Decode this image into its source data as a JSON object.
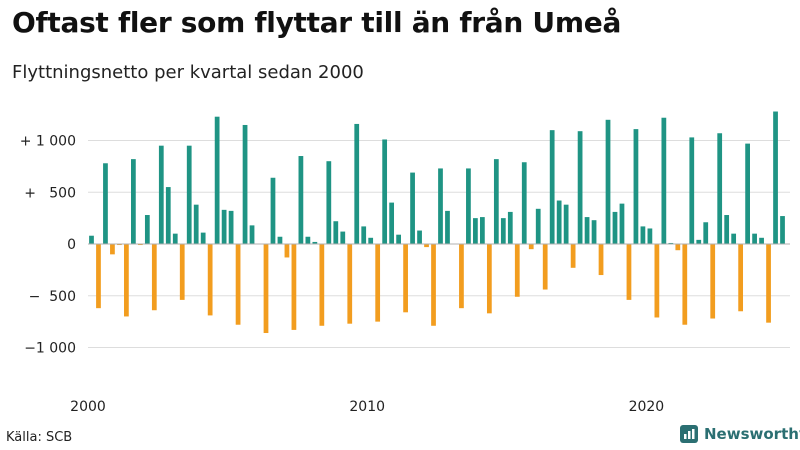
{
  "title": "Oftast fler som flyttar till än från Umeå",
  "subtitle": "Flyttningsnetto per kvartal sedan 2000",
  "source": "Källa: SCB",
  "brand": {
    "name": "Newsworthy",
    "logo_icon": "bar-chart-logo-icon"
  },
  "colors": {
    "positive": "#1f9484",
    "negative": "#f29d1f",
    "grid": "#dddddd",
    "zero": "#b0b0b0"
  },
  "chart_data": {
    "type": "bar",
    "title": "Oftast fler som flyttar till än från Umeå",
    "subtitle": "Flyttningsnetto per kvartal sedan 2000",
    "xlabel": "",
    "ylabel": "",
    "x_start": "2000 Q1",
    "x_ticks": [
      "2000",
      "2010",
      "2020"
    ],
    "ylim": [
      -1150,
      1300
    ],
    "y_ticks": [
      1000,
      500,
      0,
      -500,
      -1000
    ],
    "y_tick_labels": [
      "+ 1 000",
      "+   500",
      "0",
      "−  500",
      "−1 000"
    ],
    "grid": true,
    "legend": "none",
    "values": [
      80,
      -620,
      780,
      -100,
      -10,
      -700,
      820,
      -10,
      280,
      -640,
      950,
      550,
      100,
      -540,
      950,
      380,
      110,
      -690,
      1230,
      330,
      320,
      -780,
      1150,
      180,
      0,
      -860,
      640,
      70,
      -130,
      -830,
      850,
      70,
      20,
      -790,
      800,
      220,
      120,
      -770,
      1160,
      170,
      60,
      -750,
      1010,
      400,
      90,
      -660,
      690,
      130,
      -30,
      -790,
      730,
      320,
      0,
      -620,
      730,
      250,
      260,
      -670,
      820,
      250,
      310,
      -510,
      790,
      -50,
      340,
      -440,
      1100,
      420,
      380,
      -230,
      1090,
      260,
      230,
      -300,
      1200,
      310,
      390,
      -540,
      1110,
      170,
      150,
      -710,
      1220,
      10,
      -60,
      -780,
      1030,
      40,
      210,
      -720,
      1070,
      280,
      100,
      -650,
      970,
      100,
      60,
      -760,
      1280,
      270
    ]
  }
}
